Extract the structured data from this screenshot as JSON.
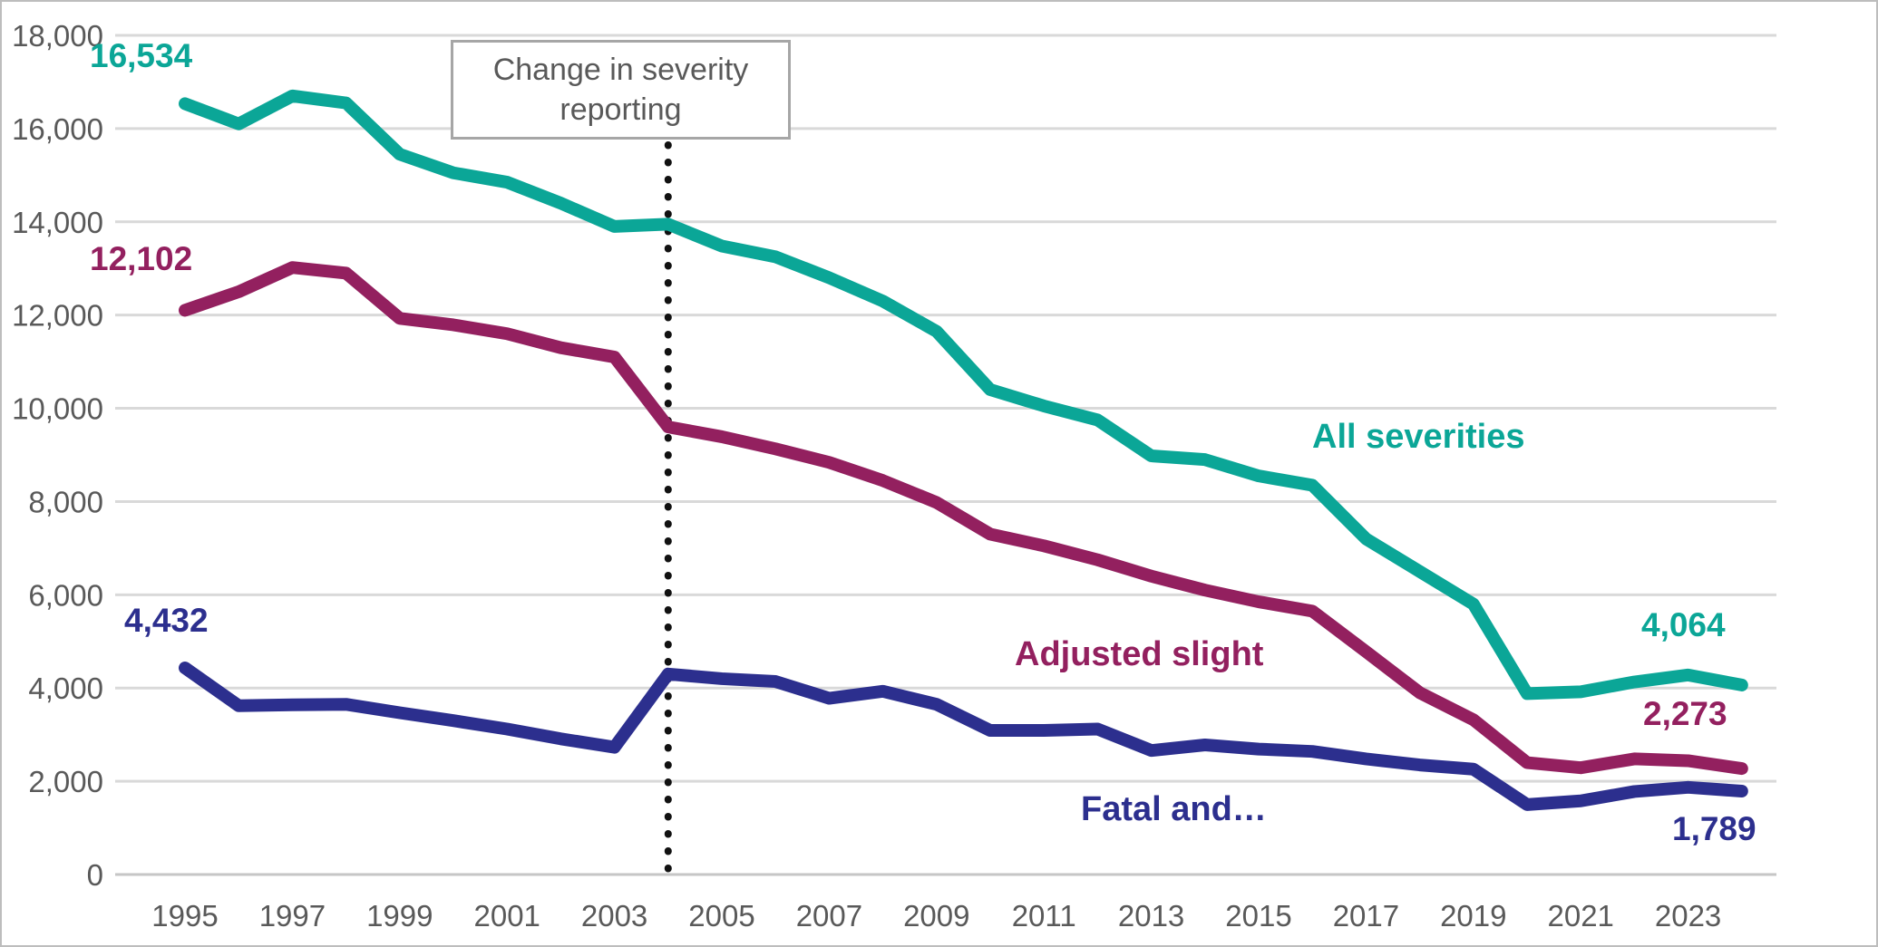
{
  "chart_data": {
    "type": "line",
    "title": "",
    "xlabel": "",
    "ylabel": "",
    "x_years": [
      1995,
      1996,
      1997,
      1998,
      1999,
      2000,
      2001,
      2002,
      2003,
      2004,
      2005,
      2006,
      2007,
      2008,
      2009,
      2010,
      2011,
      2012,
      2013,
      2014,
      2015,
      2016,
      2017,
      2018,
      2019,
      2020,
      2021,
      2022,
      2023,
      2024
    ],
    "x_tick_labels": [
      "1995",
      "1997",
      "1999",
      "2001",
      "2003",
      "2005",
      "2007",
      "2009",
      "2011",
      "2013",
      "2015",
      "2017",
      "2019",
      "2021",
      "2023"
    ],
    "y_tick_labels": [
      "0",
      "2,000",
      "4,000",
      "6,000",
      "8,000",
      "10,000",
      "12,000",
      "14,000",
      "16,000",
      "18,000"
    ],
    "ylim": [
      0,
      18000
    ],
    "grid": "horizontal",
    "legend_position": "inline-labels",
    "series": [
      {
        "name": "All severities",
        "color": "#0ba697",
        "start_label": "16,534",
        "end_label": "4,064",
        "values": [
          16534,
          16100,
          16700,
          16550,
          15450,
          15050,
          14850,
          14400,
          13900,
          13950,
          13480,
          13250,
          12800,
          12300,
          11650,
          10400,
          10050,
          9750,
          8980,
          8900,
          8550,
          8350,
          7200,
          6500,
          5800,
          3880,
          3920,
          4130,
          4280,
          4064
        ]
      },
      {
        "name": "Adjusted slight",
        "color": "#93205f",
        "start_label": "12,102",
        "end_label": "2,273",
        "values": [
          12102,
          12500,
          13020,
          12900,
          11930,
          11790,
          11600,
          11300,
          11100,
          9600,
          9390,
          9130,
          8840,
          8450,
          7980,
          7300,
          7050,
          6750,
          6400,
          6100,
          5850,
          5650,
          4780,
          3900,
          3320,
          2400,
          2290,
          2480,
          2440,
          2273
        ]
      },
      {
        "name": "Fatal and…",
        "color": "#2c2f8e",
        "start_label": "4,432",
        "end_label": "1,789",
        "values": [
          4432,
          3620,
          3640,
          3650,
          3470,
          3300,
          3120,
          2910,
          2730,
          4300,
          4200,
          4140,
          3780,
          3930,
          3650,
          3090,
          3090,
          3120,
          2660,
          2780,
          2690,
          2640,
          2480,
          2350,
          2260,
          1500,
          1580,
          1780,
          1870,
          1789
        ]
      }
    ],
    "annotation": {
      "text": "Change in severity reporting",
      "year": 2004
    }
  },
  "colors": {
    "axis_text": "#595959",
    "gridline": "#d9d9d9",
    "zero_line": "#c6c6c6",
    "dotted_line": "#111111",
    "background": "#ffffff",
    "frame_border": "#bdbdbd"
  }
}
